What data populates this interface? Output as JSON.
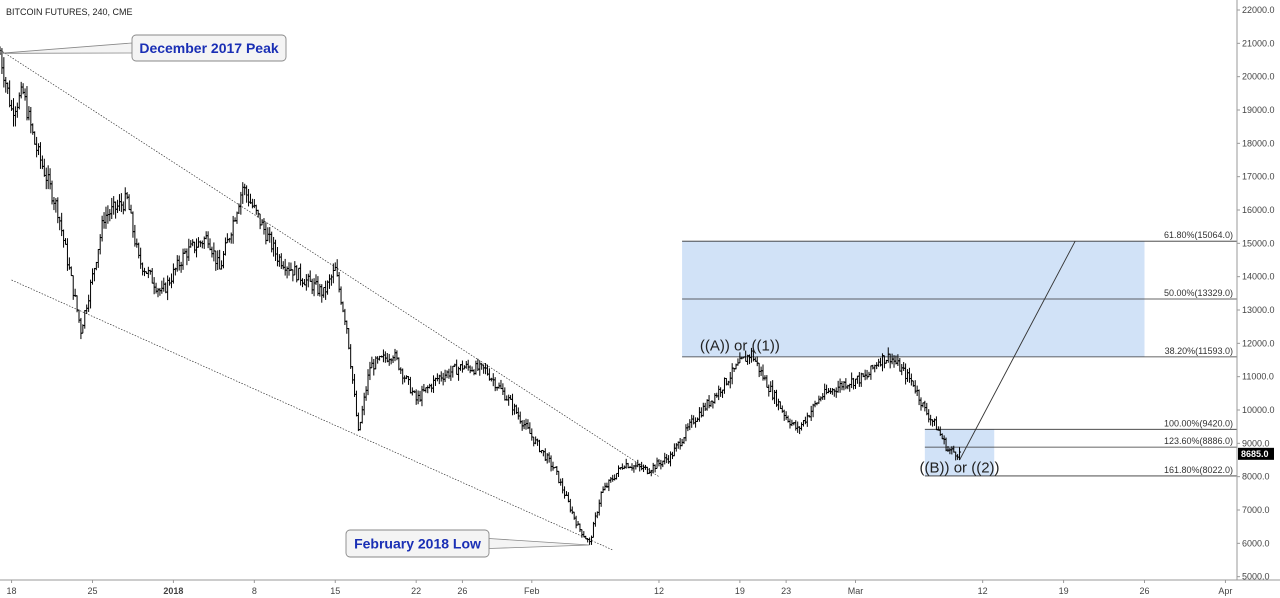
{
  "chart_data": {
    "type": "ohlc",
    "title": "BITCOIN FUTURES, 240, CME",
    "ylim": [
      4900,
      22300
    ],
    "xlim": [
      "2017-12-17",
      "2018-04-03"
    ],
    "y_ticks": [
      {
        "v": 5000,
        "label": "5000.0"
      },
      {
        "v": 6000,
        "label": "6000.0"
      },
      {
        "v": 7000,
        "label": "7000.0"
      },
      {
        "v": 8000,
        "label": "8000.0"
      },
      {
        "v": 9000,
        "label": "9000.0"
      },
      {
        "v": 10000,
        "label": "10000.0"
      },
      {
        "v": 11000,
        "label": "11000.0"
      },
      {
        "v": 12000,
        "label": "12000.0"
      },
      {
        "v": 13000,
        "label": "13000.0"
      },
      {
        "v": 14000,
        "label": "14000.0"
      },
      {
        "v": 15000,
        "label": "15000.0"
      },
      {
        "v": 16000,
        "label": "16000.0"
      },
      {
        "v": 17000,
        "label": "17000.0"
      },
      {
        "v": 18000,
        "label": "18000.0"
      },
      {
        "v": 19000,
        "label": "19000.0"
      },
      {
        "v": 20000,
        "label": "20000.0"
      },
      {
        "v": 21000,
        "label": "21000.0"
      },
      {
        "v": 22000,
        "label": "22000.0"
      }
    ],
    "x_ticks": [
      {
        "date": "2017-12-18",
        "label": "18"
      },
      {
        "date": "2017-12-25",
        "label": "25"
      },
      {
        "date": "2018-01-01",
        "label": "2018",
        "bold": true
      },
      {
        "date": "2018-01-08",
        "label": "8"
      },
      {
        "date": "2018-01-15",
        "label": "15"
      },
      {
        "date": "2018-01-22",
        "label": "22"
      },
      {
        "date": "2018-01-26",
        "label": "26"
      },
      {
        "date": "2018-02-01",
        "label": "Feb"
      },
      {
        "date": "2018-02-12",
        "label": "12"
      },
      {
        "date": "2018-02-19",
        "label": "19"
      },
      {
        "date": "2018-02-23",
        "label": "23"
      },
      {
        "date": "2018-03-01",
        "label": "Mar"
      },
      {
        "date": "2018-03-12",
        "label": "12"
      },
      {
        "date": "2018-03-19",
        "label": "19"
      },
      {
        "date": "2018-03-26",
        "label": "26"
      },
      {
        "date": "2018-04-02",
        "label": "Apr"
      }
    ],
    "price_path": [
      [
        "2017-12-17",
        20700
      ],
      [
        "2017-12-18",
        19000
      ],
      [
        "2017-12-19",
        19500
      ],
      [
        "2017-12-20",
        18000
      ],
      [
        "2017-12-22",
        16000
      ],
      [
        "2017-12-24",
        12400
      ],
      [
        "2017-12-25",
        14000
      ],
      [
        "2017-12-26",
        15800
      ],
      [
        "2017-12-28",
        16300
      ],
      [
        "2017-12-29",
        14500
      ],
      [
        "2017-12-31",
        13500
      ],
      [
        "2018-01-02",
        14700
      ],
      [
        "2018-01-04",
        15200
      ],
      [
        "2018-01-05",
        14200
      ],
      [
        "2018-01-07",
        16700
      ],
      [
        "2018-01-08",
        16000
      ],
      [
        "2018-01-10",
        14600
      ],
      [
        "2018-01-12",
        14000
      ],
      [
        "2018-01-14",
        13500
      ],
      [
        "2018-01-15",
        14200
      ],
      [
        "2018-01-16",
        12500
      ],
      [
        "2018-01-17",
        9300
      ],
      [
        "2018-01-18",
        11300
      ],
      [
        "2018-01-20",
        11700
      ],
      [
        "2018-01-22",
        10300
      ],
      [
        "2018-01-24",
        11000
      ],
      [
        "2018-01-26",
        11300
      ],
      [
        "2018-01-28",
        11200
      ],
      [
        "2018-01-30",
        10300
      ],
      [
        "2018-02-01",
        9200
      ],
      [
        "2018-02-03",
        8200
      ],
      [
        "2018-02-05",
        6500
      ],
      [
        "2018-02-06",
        6000
      ],
      [
        "2018-02-07",
        7500
      ],
      [
        "2018-02-09",
        8400
      ],
      [
        "2018-02-11",
        8200
      ],
      [
        "2018-02-13",
        8600
      ],
      [
        "2018-02-15",
        9700
      ],
      [
        "2018-02-17",
        10500
      ],
      [
        "2018-02-19",
        11400
      ],
      [
        "2018-02-20",
        11700
      ],
      [
        "2018-02-21",
        11000
      ],
      [
        "2018-02-23",
        9800
      ],
      [
        "2018-02-24",
        9400
      ],
      [
        "2018-02-26",
        10400
      ],
      [
        "2018-02-28",
        10800
      ],
      [
        "2018-03-02",
        11000
      ],
      [
        "2018-03-03",
        11500
      ],
      [
        "2018-03-04",
        11600
      ],
      [
        "2018-03-06",
        10800
      ],
      [
        "2018-03-07",
        10000
      ],
      [
        "2018-03-08",
        9500
      ],
      [
        "2018-03-09",
        8800
      ],
      [
        "2018-03-10",
        8685
      ]
    ],
    "trendlines": [
      {
        "from": [
          "2017-12-17",
          20800
        ],
        "to": [
          "2018-02-12",
          8000
        ]
      },
      {
        "from": [
          "2017-12-18",
          13900
        ],
        "to": [
          "2018-02-08",
          5800
        ]
      },
      {
        "from": [
          "2018-03-10",
          8500
        ],
        "to": [
          "2018-03-20",
          15064
        ]
      }
    ],
    "zones": [
      {
        "from": "2018-02-14",
        "to": "2018-03-26",
        "y1": 11593,
        "y2": 15064
      },
      {
        "from": "2018-03-07",
        "to": "2018-03-13",
        "y1": 8022,
        "y2": 9420
      }
    ],
    "fib_levels": [
      {
        "label": "61.80%(15064.0)",
        "value": 15064,
        "from": "2018-02-14"
      },
      {
        "label": "50.00%(13329.0)",
        "value": 13329,
        "from": "2018-02-14"
      },
      {
        "label": "38.20%(11593.0)",
        "value": 11593,
        "from": "2018-02-14"
      },
      {
        "label": "100.00%(9420.0)",
        "value": 9420,
        "from": "2018-03-07"
      },
      {
        "label": "123.60%(8886.0)",
        "value": 8886,
        "from": "2018-03-07"
      },
      {
        "label": "161.80%(8022.0)",
        "value": 8022,
        "from": "2018-03-07"
      }
    ],
    "wave_labels": [
      {
        "text": "((A)) or ((1))",
        "date": "2018-02-19",
        "y": 11780
      },
      {
        "text": "((B)) or ((2))",
        "date": "2018-03-10",
        "y": 8130
      }
    ],
    "callouts": [
      {
        "text": "December 2017 Peak",
        "anchor": [
          "2017-12-17",
          20700
        ]
      },
      {
        "text": "February 2018 Low",
        "anchor": [
          "2018-02-06",
          5950
        ]
      }
    ],
    "last_price": {
      "value": 8685,
      "label": "8685.0",
      "color": "#000000"
    },
    "colors": {
      "bars": "#000000",
      "zone": "#cfe0f7",
      "fib_line": "#333333",
      "callout_text": "#1a2fb5"
    }
  }
}
